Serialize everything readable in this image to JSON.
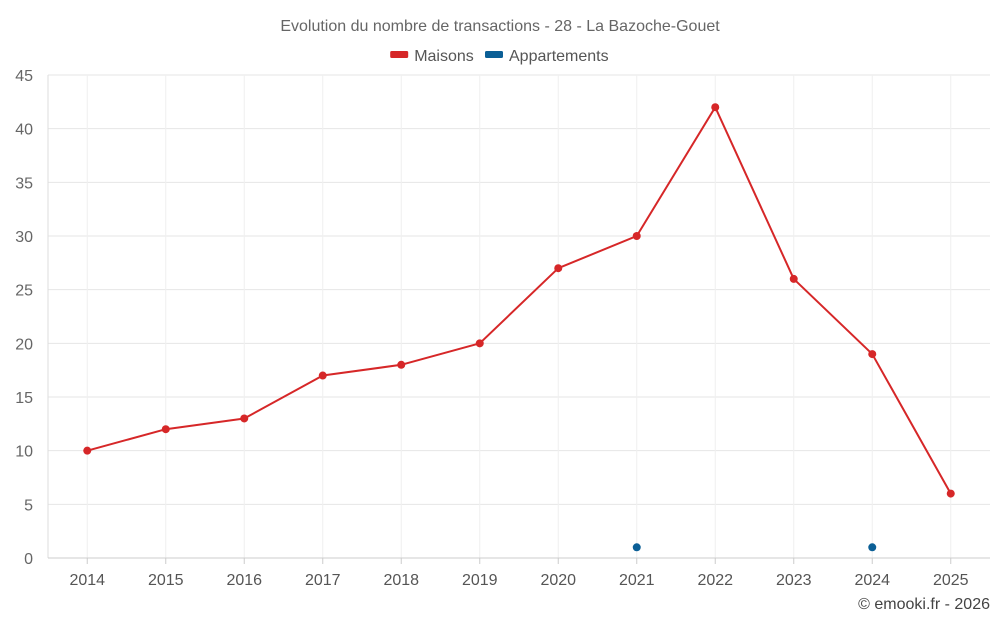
{
  "chart_data": {
    "type": "line",
    "title": "Evolution du nombre de transactions - 28 - La Bazoche-Gouet",
    "xlabel": "",
    "ylabel": "",
    "ylim": [
      0,
      45
    ],
    "yticks": [
      0,
      5,
      10,
      15,
      20,
      25,
      30,
      35,
      40,
      45
    ],
    "grid": true,
    "legend_position": "top-center",
    "categories": [
      "2014",
      "2015",
      "2016",
      "2017",
      "2018",
      "2019",
      "2020",
      "2021",
      "2022",
      "2023",
      "2024",
      "2025"
    ],
    "series": [
      {
        "name": "Maisons",
        "color": "#d62728",
        "line": true,
        "values": [
          10,
          12,
          13,
          17,
          18,
          20,
          27,
          30,
          42,
          26,
          19,
          6
        ]
      },
      {
        "name": "Appartements",
        "color": "#0b5f96",
        "line": false,
        "values": [
          null,
          null,
          null,
          null,
          null,
          null,
          null,
          1,
          null,
          null,
          1,
          null
        ]
      }
    ],
    "credit": "© emooki.fr - 2026"
  }
}
